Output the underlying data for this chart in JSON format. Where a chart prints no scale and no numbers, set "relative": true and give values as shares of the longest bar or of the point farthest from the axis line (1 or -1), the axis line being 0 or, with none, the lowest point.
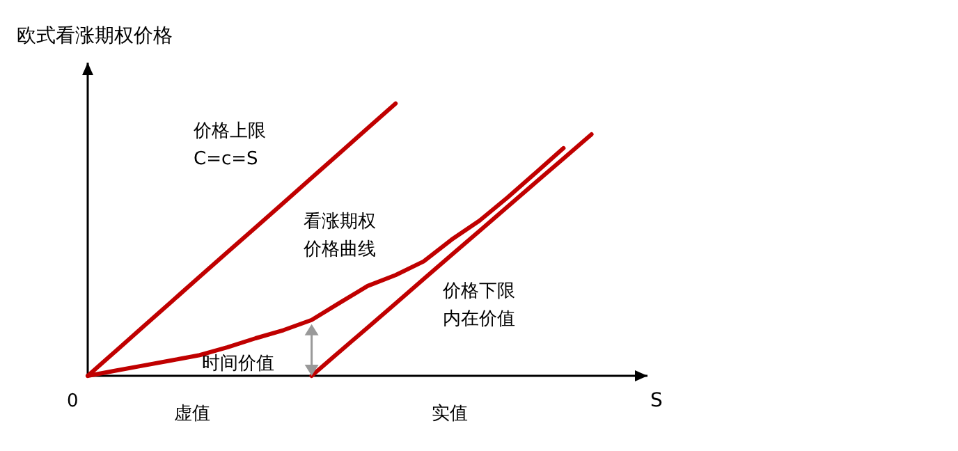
{
  "chart_data": {
    "type": "line",
    "relative": true,
    "ylabel": "欧式看涨期权价格",
    "xlabel": "S",
    "categories": [
      null,
      null,
      null,
      null,
      null,
      null,
      null,
      null,
      null,
      null,
      null,
      null,
      null,
      null,
      null,
      null,
      null,
      null,
      null,
      null,
      null
    ],
    "series": [
      {
        "name": "价格上限\nC=c=S",
        "color": "#c00000",
        "values": [
          0,
          0.091,
          0.182,
          0.273,
          0.364,
          0.455,
          0.545,
          0.636,
          0.727,
          0.818,
          0.909,
          1,
          null,
          null,
          null,
          null,
          null,
          null,
          null,
          null,
          null
        ]
      },
      {
        "name": "看涨期权价格曲线",
        "color": "#c00000",
        "values": [
          0,
          0.019,
          0.038,
          0.057,
          0.076,
          0.105,
          0.138,
          0.168,
          0.205,
          0.268,
          0.33,
          0.37,
          0.42,
          0.5,
          0.57,
          0.655,
          0.745,
          0.836,
          null,
          null,
          null
        ]
      },
      {
        "name": "价格下限内在价值",
        "color": "#c00000",
        "values": [
          null,
          null,
          null,
          null,
          null,
          null,
          null,
          null,
          0,
          0.089,
          0.177,
          0.266,
          0.355,
          0.444,
          0.532,
          0.621,
          0.71,
          0.798,
          0.887,
          null,
          null
        ]
      }
    ],
    "annotations": [
      "0",
      "时间价值",
      "虚值",
      "实值"
    ]
  }
}
